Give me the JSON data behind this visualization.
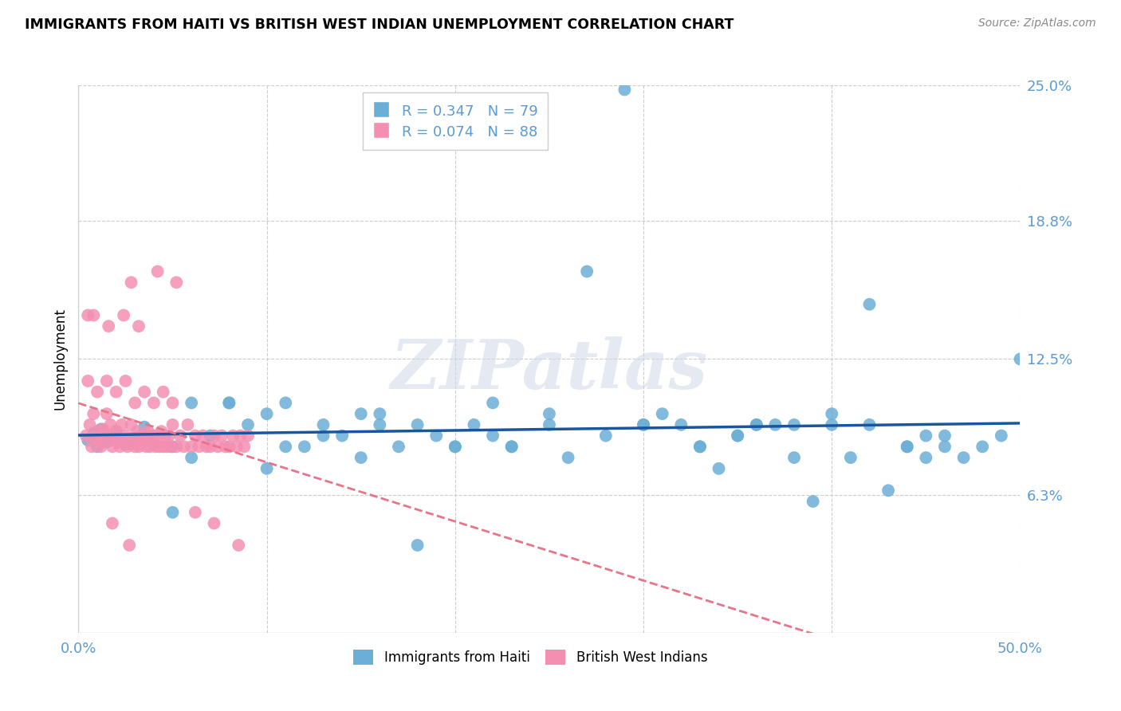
{
  "title": "IMMIGRANTS FROM HAITI VS BRITISH WEST INDIAN UNEMPLOYMENT CORRELATION CHART",
  "source": "Source: ZipAtlas.com",
  "xlabel": "",
  "ylabel": "Unemployment",
  "xlim": [
    0,
    0.5
  ],
  "ylim": [
    0,
    0.25
  ],
  "ytick_positions": [
    0.063,
    0.125,
    0.188,
    0.25
  ],
  "ytick_labels": [
    "6.3%",
    "12.5%",
    "18.8%",
    "25.0%"
  ],
  "haiti_color": "#6baed6",
  "bwi_color": "#f48fb1",
  "haiti_R": 0.347,
  "haiti_N": 79,
  "bwi_R": 0.074,
  "bwi_N": 88,
  "haiti_legend": "Immigrants from Haiti",
  "bwi_legend": "British West Indians",
  "watermark": "ZIPatlas",
  "haiti_points_x": [
    0.005,
    0.008,
    0.01,
    0.012,
    0.015,
    0.018,
    0.02,
    0.025,
    0.03,
    0.035,
    0.04,
    0.05,
    0.06,
    0.07,
    0.08,
    0.09,
    0.1,
    0.11,
    0.12,
    0.13,
    0.14,
    0.15,
    0.16,
    0.17,
    0.18,
    0.19,
    0.2,
    0.21,
    0.22,
    0.23,
    0.25,
    0.27,
    0.28,
    0.3,
    0.31,
    0.32,
    0.33,
    0.34,
    0.35,
    0.36,
    0.37,
    0.38,
    0.39,
    0.4,
    0.41,
    0.42,
    0.43,
    0.44,
    0.45,
    0.46,
    0.47,
    0.48,
    0.49,
    0.5,
    0.08,
    0.11,
    0.15,
    0.2,
    0.25,
    0.3,
    0.35,
    0.4,
    0.45,
    0.1,
    0.22,
    0.33,
    0.44,
    0.06,
    0.16,
    0.26,
    0.36,
    0.46,
    0.13,
    0.23,
    0.38,
    0.05,
    0.18,
    0.29,
    0.42
  ],
  "haiti_points_y": [
    0.088,
    0.091,
    0.085,
    0.093,
    0.087,
    0.09,
    0.092,
    0.086,
    0.089,
    0.094,
    0.087,
    0.085,
    0.105,
    0.09,
    0.105,
    0.095,
    0.1,
    0.105,
    0.085,
    0.095,
    0.09,
    0.1,
    0.095,
    0.085,
    0.095,
    0.09,
    0.085,
    0.095,
    0.09,
    0.085,
    0.1,
    0.165,
    0.09,
    0.095,
    0.1,
    0.095,
    0.085,
    0.075,
    0.09,
    0.095,
    0.095,
    0.095,
    0.06,
    0.1,
    0.08,
    0.095,
    0.065,
    0.085,
    0.09,
    0.09,
    0.08,
    0.085,
    0.09,
    0.125,
    0.105,
    0.085,
    0.08,
    0.085,
    0.095,
    0.095,
    0.09,
    0.095,
    0.08,
    0.075,
    0.105,
    0.085,
    0.085,
    0.08,
    0.1,
    0.08,
    0.095,
    0.085,
    0.09,
    0.085,
    0.08,
    0.055,
    0.04,
    0.248,
    0.15
  ],
  "bwi_points_x": [
    0.004,
    0.006,
    0.007,
    0.008,
    0.009,
    0.01,
    0.011,
    0.012,
    0.013,
    0.014,
    0.015,
    0.016,
    0.017,
    0.018,
    0.019,
    0.02,
    0.021,
    0.022,
    0.023,
    0.024,
    0.025,
    0.026,
    0.027,
    0.028,
    0.029,
    0.03,
    0.031,
    0.032,
    0.033,
    0.034,
    0.035,
    0.036,
    0.037,
    0.038,
    0.039,
    0.04,
    0.041,
    0.042,
    0.043,
    0.044,
    0.045,
    0.046,
    0.047,
    0.048,
    0.049,
    0.05,
    0.052,
    0.054,
    0.056,
    0.058,
    0.06,
    0.062,
    0.064,
    0.066,
    0.068,
    0.07,
    0.072,
    0.074,
    0.076,
    0.078,
    0.08,
    0.082,
    0.084,
    0.086,
    0.088,
    0.09,
    0.005,
    0.01,
    0.015,
    0.02,
    0.025,
    0.03,
    0.035,
    0.04,
    0.045,
    0.05,
    0.008,
    0.016,
    0.024,
    0.032,
    0.042,
    0.052,
    0.062,
    0.072,
    0.085,
    0.005,
    0.018,
    0.028
  ],
  "bwi_points_y": [
    0.09,
    0.095,
    0.085,
    0.1,
    0.088,
    0.092,
    0.087,
    0.085,
    0.093,
    0.091,
    0.1,
    0.088,
    0.095,
    0.085,
    0.09,
    0.092,
    0.087,
    0.085,
    0.095,
    0.088,
    0.09,
    0.085,
    0.04,
    0.095,
    0.088,
    0.085,
    0.092,
    0.085,
    0.09,
    0.088,
    0.09,
    0.085,
    0.092,
    0.085,
    0.09,
    0.09,
    0.085,
    0.09,
    0.085,
    0.092,
    0.085,
    0.09,
    0.085,
    0.09,
    0.085,
    0.095,
    0.085,
    0.09,
    0.085,
    0.095,
    0.085,
    0.09,
    0.085,
    0.09,
    0.085,
    0.085,
    0.09,
    0.085,
    0.09,
    0.085,
    0.085,
    0.09,
    0.085,
    0.09,
    0.085,
    0.09,
    0.115,
    0.11,
    0.115,
    0.11,
    0.115,
    0.105,
    0.11,
    0.105,
    0.11,
    0.105,
    0.145,
    0.14,
    0.145,
    0.14,
    0.165,
    0.16,
    0.055,
    0.05,
    0.04,
    0.145,
    0.05,
    0.16
  ]
}
